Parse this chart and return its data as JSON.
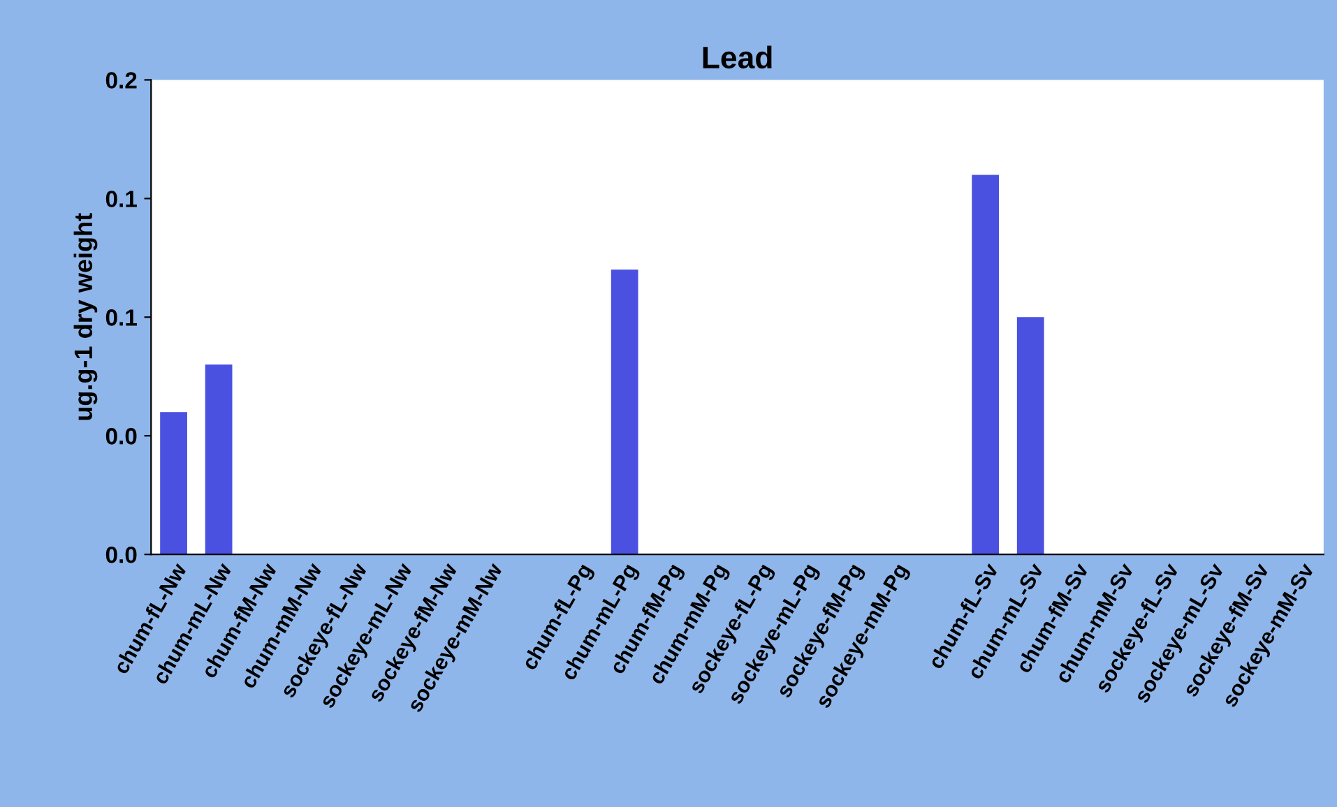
{
  "chart_data": {
    "type": "bar",
    "title": "Lead",
    "ylabel": "ug.g-1 dry weight",
    "categories": [
      "chum-fL-Nw",
      "chum-mL-Nw",
      "chum-fM-Nw",
      "chum-mM-Nw",
      "sockeye-fL-Nw",
      "sockeye-mL-Nw",
      "sockeye-fM-Nw",
      "sockeye-mM-Nw",
      null,
      "chum-fL-Pg",
      "chum-mL-Pg",
      "chum-fM-Pg",
      "chum-mM-Pg",
      "sockeye-fL-Pg",
      "sockeye-mL-Pg",
      "sockeye-fM-Pg",
      "sockeye-mM-Pg",
      null,
      "chum-fL-Sv",
      "chum-mL-Sv",
      "chum-fM-Sv",
      "chum-mM-Sv",
      "sockeye-fL-Sv",
      "sockeye-mL-Sv",
      "sockeye-fM-Sv",
      "sockeye-mM-Sv"
    ],
    "values": [
      0.06,
      0.08,
      0,
      0,
      0,
      0,
      0,
      0,
      null,
      0,
      0.12,
      0,
      0,
      0,
      0,
      0,
      0,
      null,
      0.16,
      0.1,
      0,
      0,
      0,
      0,
      0,
      0
    ],
    "color": "#4a50e0",
    "ylim": [
      0,
      0.2
    ],
    "yticks": [
      {
        "value": 0,
        "label": "0.0"
      },
      {
        "value": 0.05,
        "label": "0.0"
      },
      {
        "value": 0.1,
        "label": "0.1"
      },
      {
        "value": 0.15,
        "label": "0.1"
      },
      {
        "value": 0.2,
        "label": "0.2"
      }
    ],
    "grid": false,
    "legend": false
  }
}
